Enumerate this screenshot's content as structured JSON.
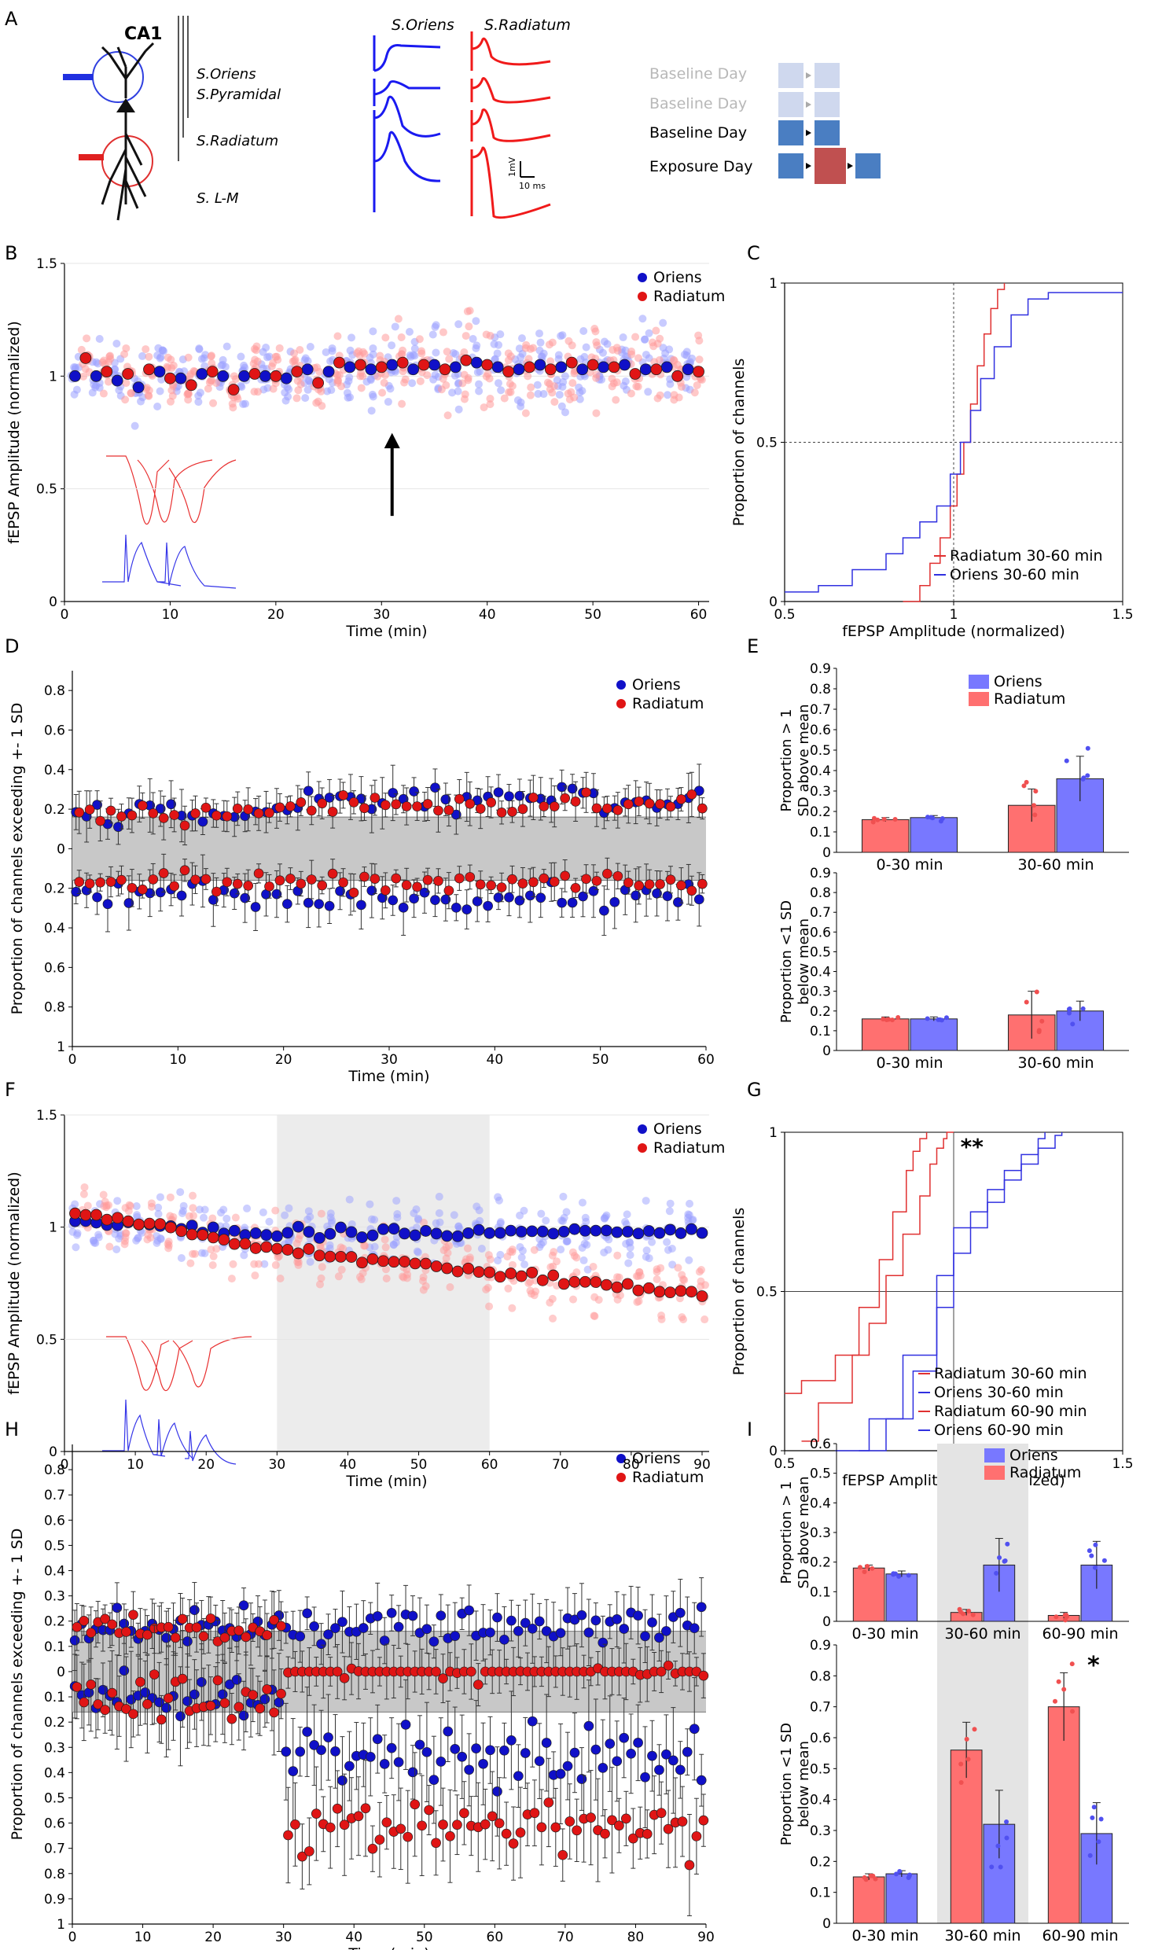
{
  "panel_letters": [
    "A",
    "B",
    "C",
    "D",
    "E",
    "F",
    "G",
    "H",
    "I"
  ],
  "colors": {
    "oriens": "#1010c8",
    "radiatum": "#e01515",
    "oriens_light": "#9aa0ff",
    "radiatum_light": "#ff9a9a",
    "bar_oriens": "#7878ff",
    "bar_radiatum": "#ff7070",
    "gray": "#c8c8c8"
  },
  "panel_a": {
    "region": "CA1",
    "layers": [
      "S.Oriens",
      "S.Pyramidal",
      "S.Radiatum",
      "S. L-M"
    ],
    "trace_titles": [
      "S.Oriens",
      "S.Radiatum"
    ],
    "scale_v": "1mV",
    "scale_t": "10 ms",
    "timeline": [
      {
        "label": "Baseline Day",
        "faded": true
      },
      {
        "label": "Baseline Day",
        "faded": true
      },
      {
        "label": "Baseline Day",
        "faded": false
      },
      {
        "label": "Exposure Day",
        "faded": false
      }
    ]
  },
  "chart_data": [
    {
      "id": "B",
      "type": "scatter",
      "title": "",
      "xlabel": "Time (min)",
      "ylabel": "fEPSP Amplitude (normalized)",
      "xlim": [
        0,
        61
      ],
      "ylim": [
        0,
        1.5
      ],
      "xticks": [
        0,
        10,
        20,
        30,
        40,
        50,
        60
      ],
      "xtick_labels": [
        "0",
        "10",
        "20",
        "30",
        "40",
        "50",
        "60"
      ],
      "yticks": [
        0,
        0.5,
        1,
        1.5
      ],
      "ytick_labels": [
        "0",
        "0.5",
        "1",
        "1.5"
      ],
      "legend": [
        "Oriens",
        "Radiatum"
      ],
      "legend_position": "top-right",
      "annotation": "exposure arrow at 30 min",
      "series": [
        {
          "name": "Oriens",
          "x": [
            1,
            3,
            5,
            7,
            9,
            11,
            13,
            15,
            17,
            19,
            21,
            23,
            25,
            27,
            29,
            31,
            33,
            35,
            37,
            39,
            41,
            43,
            45,
            47,
            49,
            51,
            53,
            55,
            57,
            59
          ],
          "y": [
            1.0,
            1.0,
            0.98,
            0.95,
            1.02,
            0.99,
            1.01,
            1.0,
            1.0,
            1.0,
            0.99,
            1.03,
            1.02,
            1.04,
            1.03,
            1.05,
            1.03,
            1.05,
            1.04,
            1.06,
            1.04,
            1.03,
            1.05,
            1.04,
            1.03,
            1.04,
            1.05,
            1.03,
            1.04,
            1.03
          ]
        },
        {
          "name": "Radiatum",
          "x": [
            2,
            4,
            6,
            8,
            10,
            12,
            14,
            16,
            18,
            20,
            22,
            24,
            26,
            28,
            30,
            32,
            34,
            36,
            38,
            40,
            42,
            44,
            46,
            48,
            50,
            52,
            54,
            56,
            58,
            60
          ],
          "y": [
            1.08,
            1.02,
            1.01,
            1.03,
            0.99,
            0.96,
            1.02,
            0.94,
            1.01,
            1.0,
            1.02,
            0.97,
            1.06,
            1.05,
            1.04,
            1.06,
            1.05,
            1.03,
            1.07,
            1.05,
            1.02,
            1.04,
            1.03,
            1.06,
            1.05,
            1.04,
            1.01,
            1.03,
            1.0,
            1.02
          ]
        }
      ]
    },
    {
      "id": "C",
      "type": "line",
      "xlabel": "fEPSP Amplitude (normalized)",
      "ylabel": "Proportion of channels",
      "xlim": [
        0.5,
        1.5
      ],
      "ylim": [
        0,
        1
      ],
      "xticks": [
        0.5,
        1,
        1.5
      ],
      "xtick_labels": [
        "0.5",
        "1",
        "1.5"
      ],
      "yticks": [
        0,
        0.5,
        1
      ],
      "ytick_labels": [
        "0",
        "0.5",
        "1"
      ],
      "legend": [
        "Radiatum 30-60 min",
        "Oriens 30-60 min"
      ],
      "legend_position": "bottom-right",
      "series": [
        {
          "name": "Radiatum 30-60 min",
          "color": "radiatum",
          "x": [
            0.85,
            0.9,
            0.93,
            0.96,
            0.99,
            1.01,
            1.03,
            1.05,
            1.07,
            1.09,
            1.11,
            1.13,
            1.15
          ],
          "y": [
            0.0,
            0.05,
            0.12,
            0.2,
            0.3,
            0.4,
            0.5,
            0.62,
            0.74,
            0.84,
            0.92,
            0.98,
            1.0
          ]
        },
        {
          "name": "Oriens 30-60 min",
          "color": "oriens",
          "x": [
            0.5,
            0.6,
            0.7,
            0.8,
            0.85,
            0.9,
            0.95,
            0.99,
            1.02,
            1.05,
            1.08,
            1.12,
            1.17,
            1.22,
            1.28,
            1.35,
            1.4,
            1.5
          ],
          "y": [
            0.03,
            0.05,
            0.1,
            0.15,
            0.2,
            0.25,
            0.3,
            0.4,
            0.5,
            0.6,
            0.7,
            0.8,
            0.9,
            0.95,
            0.97,
            0.97,
            0.97,
            0.97
          ]
        }
      ]
    },
    {
      "id": "D",
      "type": "scatter",
      "xlabel": "Time (min)",
      "ylabel": "Proportion of channels exceeding +- 1 SD",
      "xlim": [
        0,
        60
      ],
      "ylim": [
        -1,
        0.9
      ],
      "xticks": [
        0,
        10,
        20,
        30,
        40,
        50,
        60
      ],
      "xtick_labels": [
        "0",
        "10",
        "20",
        "30",
        "40",
        "50",
        "60"
      ],
      "yticks": [
        0.8,
        0.6,
        0.4,
        0.2,
        0,
        -0.2,
        -0.4,
        -0.6,
        -0.8,
        -1
      ],
      "ytick_labels": [
        "0.8",
        "0.6",
        "0.4",
        "0.2",
        "0",
        "0.2",
        "0.4",
        "0.6",
        "0.8",
        "1"
      ],
      "band": [
        -0.16,
        0.16
      ],
      "legend": [
        "Oriens",
        "Radiatum"
      ],
      "legend_position": "top-right",
      "series": [
        {
          "name": "Oriens above",
          "base_mean": 0.17,
          "late_mean": 0.25,
          "err": 0.1
        },
        {
          "name": "Oriens below",
          "base_mean": -0.24,
          "late_mean": -0.24,
          "err": 0.1
        },
        {
          "name": "Radiatum above",
          "base_mean": 0.17,
          "late_mean": 0.22,
          "err": 0.08
        },
        {
          "name": "Radiatum below",
          "base_mean": -0.17,
          "late_mean": -0.17,
          "err": 0.07
        }
      ]
    },
    {
      "id": "E",
      "type": "bar",
      "categories": [
        "0-30 min",
        "30-60 min"
      ],
      "legend": [
        "Oriens",
        "Radiatum"
      ],
      "legend_position": "top-right",
      "subplots": [
        {
          "ylabel": "Proportion > 1 SD above mean",
          "ylim": [
            0,
            0.9
          ],
          "yticks": [
            0,
            0.1,
            0.2,
            0.3,
            0.4,
            0.5,
            0.6,
            0.7,
            0.8,
            0.9
          ],
          "ytick_labels": [
            "0",
            "0.1",
            "0.2",
            "0.3",
            "0.4",
            "0.5",
            "0.6",
            "0.7",
            "0.8",
            "0.9"
          ],
          "series": [
            {
              "name": "Radiatum",
              "values": [
                0.16,
                0.23
              ],
              "err": [
                0.01,
                0.08
              ]
            },
            {
              "name": "Oriens",
              "values": [
                0.17,
                0.36
              ],
              "err": [
                0.01,
                0.11
              ]
            }
          ]
        },
        {
          "ylabel": "Proportion <1 SD below mean",
          "ylim": [
            0,
            0.9
          ],
          "yticks": [
            0,
            0.1,
            0.2,
            0.3,
            0.4,
            0.5,
            0.6,
            0.7,
            0.8,
            0.9
          ],
          "ytick_labels": [
            "0",
            "0.1",
            "0.2",
            "0.3",
            "0.4",
            "0.5",
            "0.6",
            "0.7",
            "0.8",
            "0.9"
          ],
          "series": [
            {
              "name": "Radiatum",
              "values": [
                0.16,
                0.18
              ],
              "err": [
                0.01,
                0.12
              ]
            },
            {
              "name": "Oriens",
              "values": [
                0.16,
                0.2
              ],
              "err": [
                0.01,
                0.05
              ]
            }
          ]
        }
      ]
    },
    {
      "id": "F",
      "type": "scatter",
      "xlabel": "Time (min)",
      "ylabel": "fEPSP Amplitude (normalized)",
      "xlim": [
        0,
        91
      ],
      "ylim": [
        0,
        1.5
      ],
      "xticks": [
        0,
        10,
        20,
        30,
        40,
        50,
        60,
        70,
        80,
        90
      ],
      "xtick_labels": [
        "0",
        "10",
        "20",
        "30",
        "40",
        "50",
        "60",
        "70",
        "80",
        "90"
      ],
      "yticks": [
        0,
        0.5,
        1,
        1.5
      ],
      "ytick_labels": [
        "0",
        "0.5",
        "1",
        "1.5"
      ],
      "shaded_x": [
        30,
        60
      ],
      "legend": [
        "Oriens",
        "Radiatum"
      ],
      "legend_position": "top-right",
      "series": [
        {
          "name": "Oriens",
          "start": 1.05,
          "end": 0.98
        },
        {
          "name": "Radiatum",
          "start": 1.08,
          "end": 0.7
        }
      ]
    },
    {
      "id": "G",
      "type": "line",
      "xlabel": "fEPSP Amplitude (normalized)",
      "ylabel": "Proportion of channels",
      "xlim": [
        0.5,
        1.5
      ],
      "ylim": [
        0,
        1
      ],
      "xticks": [
        0.5,
        1,
        1.5
      ],
      "xtick_labels": [
        "0.5",
        "1",
        "1.5"
      ],
      "yticks": [
        0,
        0.5,
        1
      ],
      "ytick_labels": [
        "0",
        "0.5",
        "1"
      ],
      "annotation": "**",
      "legend": [
        "Radiatum 30-60 min",
        "Oriens 30-60 min",
        "Radiatum 60-90 min",
        "Oriens 60-90 min"
      ],
      "legend_position": "bottom-right",
      "series": [
        {
          "name": "Radiatum 30-60 min",
          "color": "radiatum",
          "x": [
            0.55,
            0.6,
            0.7,
            0.75,
            0.8,
            0.85,
            0.9,
            0.93,
            0.95,
            0.97,
            0.98,
            1.0
          ],
          "y": [
            0.03,
            0.15,
            0.3,
            0.4,
            0.55,
            0.68,
            0.8,
            0.9,
            0.95,
            0.98,
            1.0,
            1.0
          ]
        },
        {
          "name": "Oriens 30-60 min",
          "color": "oriens",
          "x": [
            0.65,
            0.75,
            0.85,
            0.95,
            1.0,
            1.05,
            1.1,
            1.15,
            1.2,
            1.25,
            1.27
          ],
          "y": [
            0.0,
            0.1,
            0.3,
            0.55,
            0.7,
            0.75,
            0.82,
            0.88,
            0.93,
            0.98,
            1.0
          ]
        },
        {
          "name": "Radiatum 60-90 min",
          "color": "radiatum",
          "x": [
            0.5,
            0.55,
            0.65,
            0.72,
            0.78,
            0.82,
            0.86,
            0.88,
            0.9,
            0.92
          ],
          "y": [
            0.18,
            0.22,
            0.3,
            0.45,
            0.6,
            0.75,
            0.88,
            0.94,
            0.98,
            1.0
          ]
        },
        {
          "name": "Oriens 60-90 min",
          "color": "oriens",
          "x": [
            0.72,
            0.8,
            0.88,
            0.95,
            1.0,
            1.05,
            1.1,
            1.15,
            1.2,
            1.25,
            1.3,
            1.32
          ],
          "y": [
            0.0,
            0.1,
            0.25,
            0.45,
            0.62,
            0.7,
            0.78,
            0.85,
            0.9,
            0.95,
            0.99,
            1.0
          ]
        }
      ]
    },
    {
      "id": "H",
      "type": "scatter",
      "xlabel": "Time (min)",
      "ylabel": "Proportion of channels exceeding +- 1 SD",
      "xlim": [
        0,
        90
      ],
      "ylim": [
        -1,
        0.9
      ],
      "xticks": [
        0,
        10,
        20,
        30,
        40,
        50,
        60,
        70,
        80,
        90
      ],
      "xtick_labels": [
        "0",
        "10",
        "20",
        "30",
        "40",
        "50",
        "60",
        "70",
        "80",
        "90"
      ],
      "yticks": [
        0.8,
        0.7,
        0.6,
        0.5,
        0.4,
        0.3,
        0.2,
        0.1,
        0,
        -0.1,
        -0.2,
        -0.3,
        -0.4,
        -0.5,
        -0.6,
        -0.7,
        -0.8,
        -0.9,
        -1
      ],
      "ytick_labels": [
        "0.8",
        "0.7",
        "0.6",
        "0.5",
        "0.4",
        "0.3",
        "0.2",
        "0.1",
        "0",
        "0.1",
        "0.2",
        "0.3",
        "0.4",
        "0.5",
        "0.6",
        "0.7",
        "0.8",
        "0.9",
        "1"
      ],
      "band": [
        -0.16,
        0.16
      ],
      "legend": [
        "Oriens",
        "Radiatum"
      ],
      "legend_position": "top-right",
      "series": [
        {
          "name": "Oriens above",
          "base_mean": 0.17,
          "late_mean": 0.18,
          "err": 0.1
        },
        {
          "name": "Oriens below",
          "base_mean": -0.12,
          "late_mean": -0.32,
          "err": 0.15
        },
        {
          "name": "Radiatum above",
          "base_mean": 0.17,
          "late_mean": 0.0,
          "err": 0.08
        },
        {
          "name": "Radiatum below",
          "base_mean": -0.1,
          "late_mean": -0.62,
          "err": 0.15
        }
      ]
    },
    {
      "id": "I",
      "type": "bar",
      "categories": [
        "0-30 min",
        "30-60 min",
        "60-90 min"
      ],
      "shaded_category": "30-60 min",
      "annotation": "*",
      "legend": [
        "Oriens",
        "Radiatum"
      ],
      "legend_position": "top-right",
      "subplots": [
        {
          "ylabel": "Proportion > 1 SD above mean",
          "ylim": [
            0,
            0.6
          ],
          "yticks": [
            0,
            0.1,
            0.2,
            0.3,
            0.4,
            0.5,
            0.6
          ],
          "ytick_labels": [
            "0",
            "0.1",
            "0.2",
            "0.3",
            "0.4",
            "0.5",
            "0.6"
          ],
          "series": [
            {
              "name": "Radiatum",
              "values": [
                0.18,
                0.03,
                0.02
              ],
              "err": [
                0.01,
                0.01,
                0.01
              ]
            },
            {
              "name": "Oriens",
              "values": [
                0.16,
                0.19,
                0.19
              ],
              "err": [
                0.01,
                0.09,
                0.08
              ]
            }
          ]
        },
        {
          "ylabel": "Proportion <1 SD below mean",
          "ylim": [
            0,
            0.9
          ],
          "yticks": [
            0,
            0.1,
            0.2,
            0.3,
            0.4,
            0.5,
            0.6,
            0.7,
            0.8,
            0.9
          ],
          "ytick_labels": [
            "0",
            "0.1",
            "0.2",
            "0.3",
            "0.4",
            "0.5",
            "0.6",
            "0.7",
            "0.8",
            "0.9"
          ],
          "series": [
            {
              "name": "Radiatum",
              "values": [
                0.15,
                0.56,
                0.7
              ],
              "err": [
                0.01,
                0.09,
                0.11
              ]
            },
            {
              "name": "Oriens",
              "values": [
                0.16,
                0.32,
                0.29
              ],
              "err": [
                0.01,
                0.11,
                0.1
              ]
            }
          ]
        }
      ]
    }
  ]
}
